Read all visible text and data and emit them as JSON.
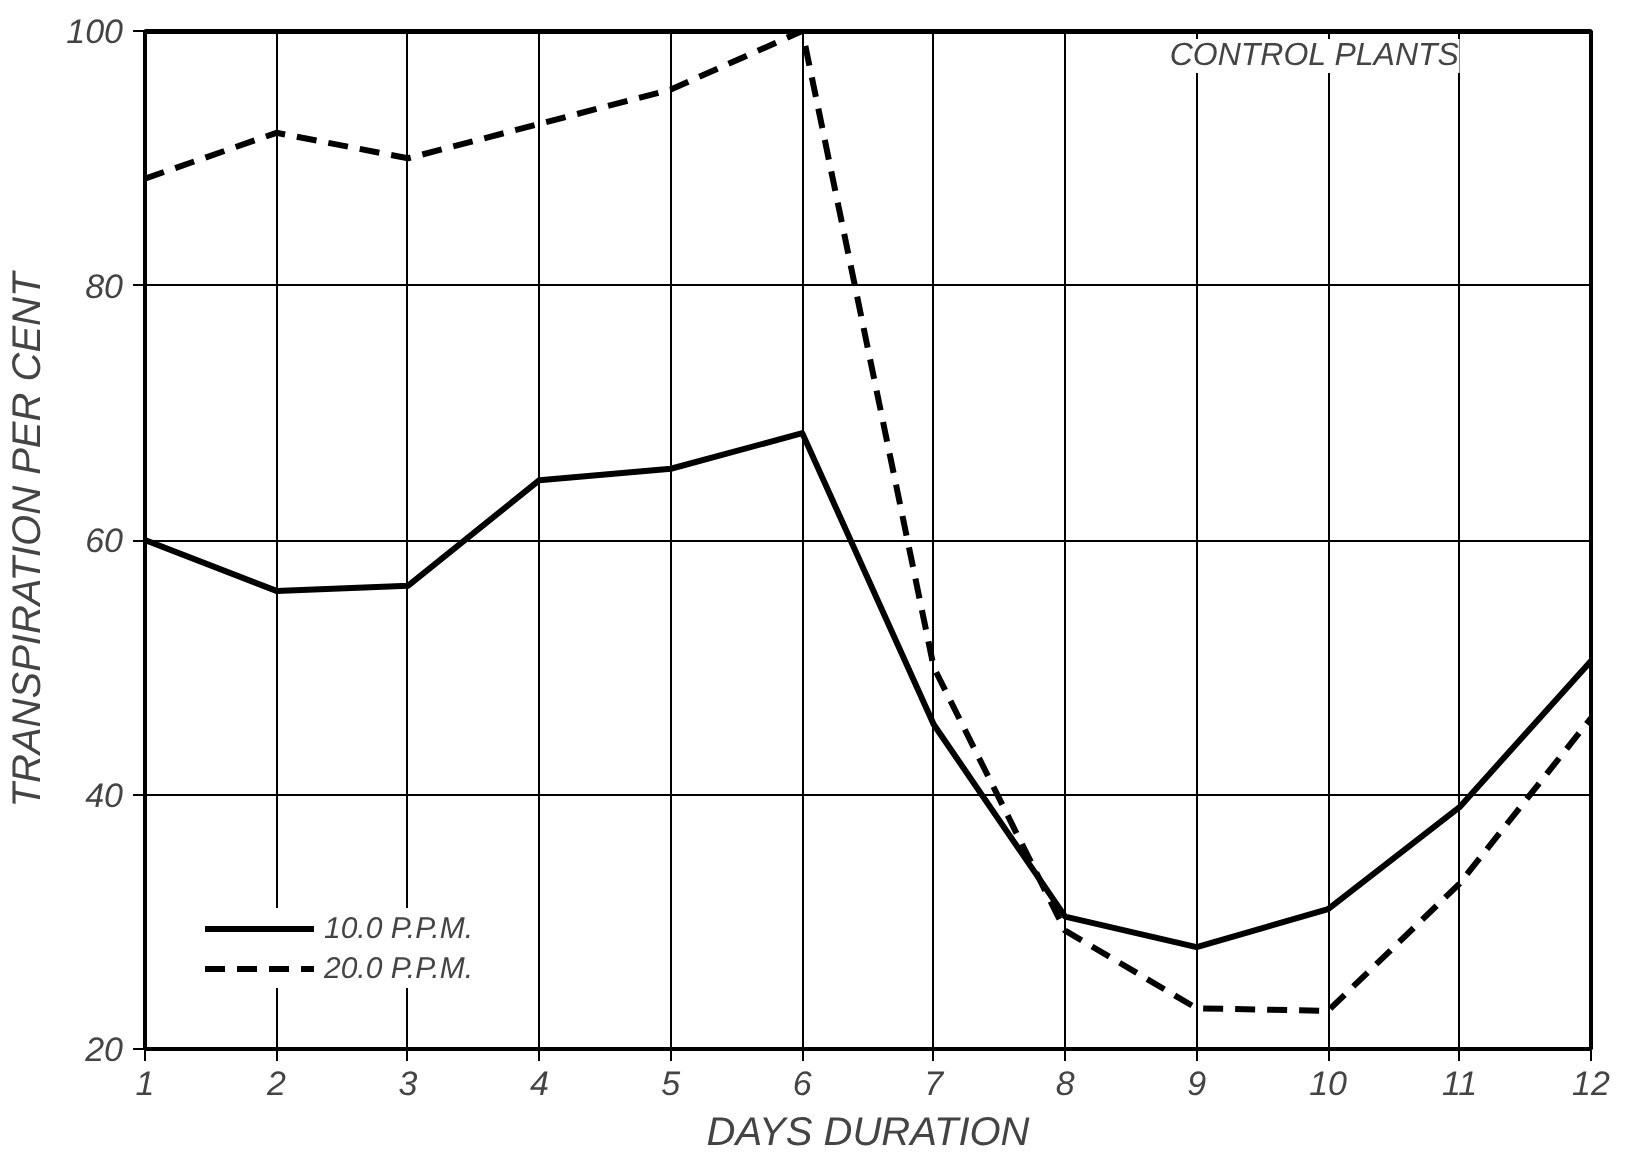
{
  "chart_data": {
    "type": "line",
    "xlabel": "DAYS DURATION",
    "ylabel": "TRANSPIRATION PER CENT",
    "x": [
      1,
      2,
      3,
      4,
      5,
      6,
      7,
      8,
      9,
      10,
      11,
      12
    ],
    "series": [
      {
        "name": "10.0 P.P.M.",
        "color": "#000000",
        "line_style": "solid",
        "values": [
          60,
          56,
          56.4,
          64.7,
          65.6,
          68.4,
          45.5,
          30.4,
          28,
          31,
          39,
          50.5
        ]
      },
      {
        "name": "20.0 P.P.M.",
        "color": "#000000",
        "line_style": "dashed",
        "values": [
          88.4,
          92,
          90,
          92.7,
          95.4,
          100,
          50,
          29.3,
          23.2,
          23,
          33,
          46
        ]
      },
      {
        "color": "#000000",
        "line_style": "solid",
        "values": [
          100,
          100,
          100,
          100,
          100,
          100,
          100,
          100,
          100,
          100,
          100,
          100
        ]
      }
    ],
    "annotations": [
      {
        "text": "CONTROL PLANTS",
        "x": 11,
        "y": 100
      }
    ],
    "xlim": [
      1,
      12
    ],
    "ylim": [
      20,
      100
    ],
    "xticks": [
      1,
      2,
      3,
      4,
      5,
      6,
      7,
      8,
      9,
      10,
      11,
      12
    ],
    "yticks": [
      20,
      40,
      60,
      80,
      100
    ],
    "grid": true,
    "legend": "bottom left",
    "marker": "none"
  }
}
